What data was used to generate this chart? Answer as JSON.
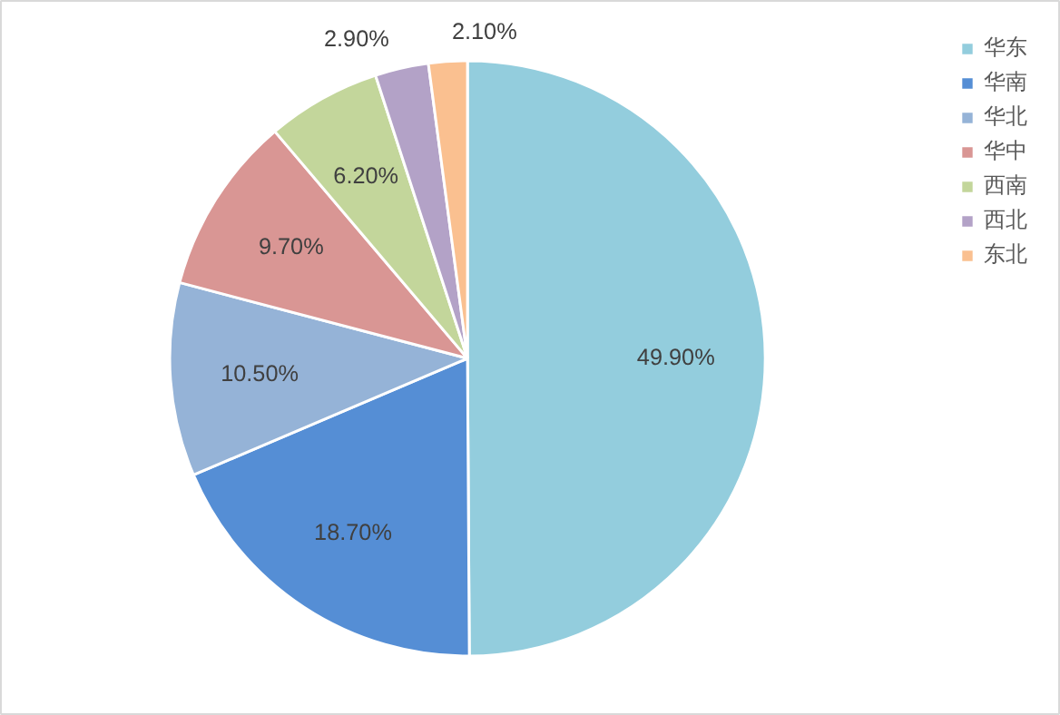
{
  "chart_data": {
    "type": "pie",
    "categories": [
      "华东",
      "华南",
      "华北",
      "华中",
      "西南",
      "西北",
      "东北"
    ],
    "values": [
      49.9,
      18.7,
      10.5,
      9.7,
      6.2,
      2.9,
      2.1
    ],
    "value_labels": [
      "49.90%",
      "18.70%",
      "10.50%",
      "9.70%",
      "6.20%",
      "2.90%",
      "2.10%"
    ],
    "colors": [
      "#93cddd",
      "#558ed5",
      "#95b3d7",
      "#d99694",
      "#c3d69b",
      "#b3a2c7",
      "#fac090"
    ],
    "legend": "right"
  }
}
